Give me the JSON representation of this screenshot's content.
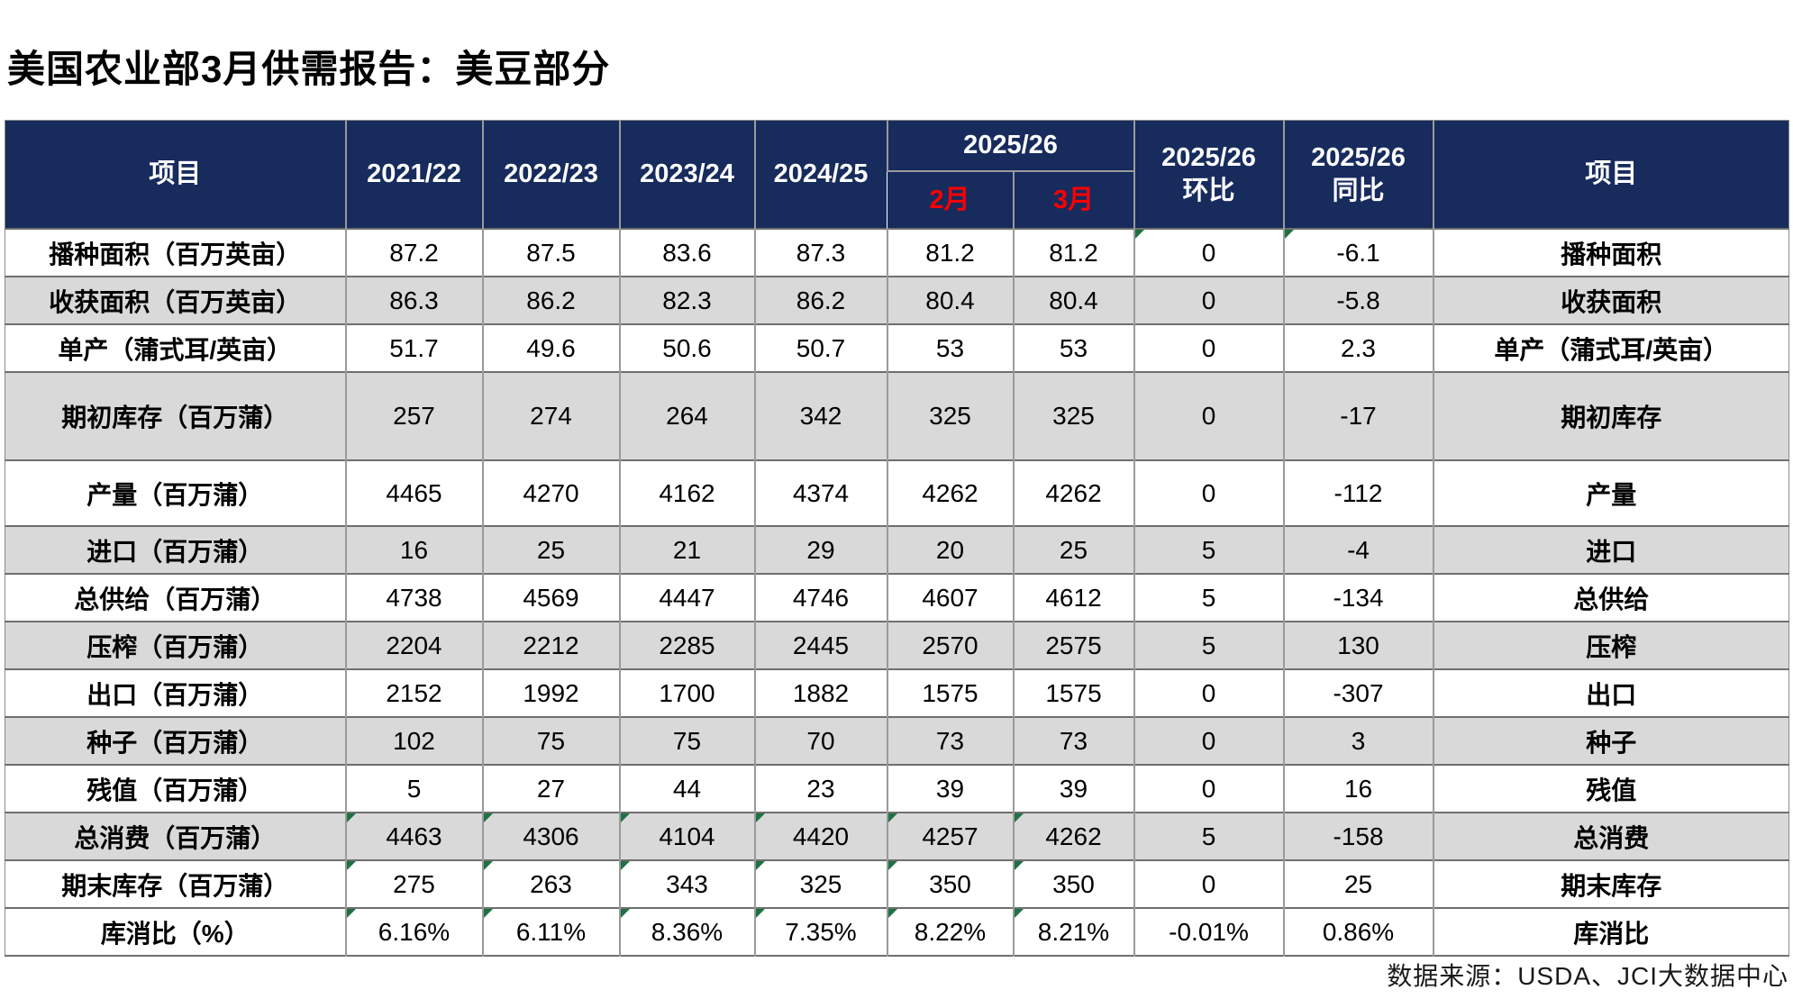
{
  "title": "美国农业部3月供需报告：美豆部分",
  "source": "数据来源：USDA、JCI大数据中心",
  "colors": {
    "header_bg": "#172B5D",
    "month_red": "#FF0000",
    "row_alt": "#D9D9D9",
    "mark_green": "#1E7145",
    "border_dark": "#6F6F6F",
    "border_light": "#9A9A9A"
  },
  "table": {
    "header": {
      "item_left": "项目",
      "years": [
        "2021/22",
        "2022/23",
        "2023/24",
        "2024/25"
      ],
      "group_label": "2025/26",
      "sub_months": [
        "2月",
        "3月"
      ],
      "mom_line1": "2025/26",
      "mom_line2": "环比",
      "yoy_line1": "2025/26",
      "yoy_line2": "同比",
      "item_right": "项目"
    },
    "rows": [
      {
        "label": "播种面积（百万英亩）",
        "values": [
          "87.2",
          "87.5",
          "83.6",
          "87.3",
          "81.2",
          "81.2",
          "0",
          "-6.1"
        ],
        "label_right": "播种面积",
        "marks": [
          6,
          7
        ]
      },
      {
        "label": "收获面积（百万英亩）",
        "values": [
          "86.3",
          "86.2",
          "82.3",
          "86.2",
          "80.4",
          "80.4",
          "0",
          "-5.8"
        ],
        "label_right": "收获面积",
        "marks": []
      },
      {
        "label": "单产（蒲式耳/英亩）",
        "values": [
          "51.7",
          "49.6",
          "50.6",
          "50.7",
          "53",
          "53",
          "0",
          "2.3"
        ],
        "label_right": "单产（蒲式耳/英亩）",
        "marks": []
      },
      {
        "label": "期初库存（百万蒲）",
        "values": [
          "257",
          "274",
          "264",
          "342",
          "325",
          "325",
          "0",
          "-17"
        ],
        "label_right": "期初库存",
        "marks": []
      },
      {
        "label": "产量（百万蒲）",
        "values": [
          "4465",
          "4270",
          "4162",
          "4374",
          "4262",
          "4262",
          "0",
          "-112"
        ],
        "label_right": "产量",
        "marks": []
      },
      {
        "label": "进口（百万蒲）",
        "values": [
          "16",
          "25",
          "21",
          "29",
          "20",
          "25",
          "5",
          "-4"
        ],
        "label_right": "进口",
        "marks": []
      },
      {
        "label": "总供给（百万蒲）",
        "values": [
          "4738",
          "4569",
          "4447",
          "4746",
          "4607",
          "4612",
          "5",
          "-134"
        ],
        "label_right": "总供给",
        "marks": []
      },
      {
        "label": "压榨（百万蒲）",
        "values": [
          "2204",
          "2212",
          "2285",
          "2445",
          "2570",
          "2575",
          "5",
          "130"
        ],
        "label_right": "压榨",
        "marks": []
      },
      {
        "label": "出口（百万蒲）",
        "values": [
          "2152",
          "1992",
          "1700",
          "1882",
          "1575",
          "1575",
          "0",
          "-307"
        ],
        "label_right": "出口",
        "marks": []
      },
      {
        "label": "种子（百万蒲）",
        "values": [
          "102",
          "75",
          "75",
          "70",
          "73",
          "73",
          "0",
          "3"
        ],
        "label_right": "种子",
        "marks": []
      },
      {
        "label": "残值（百万蒲）",
        "values": [
          "5",
          "27",
          "44",
          "23",
          "39",
          "39",
          "0",
          "16"
        ],
        "label_right": "残值",
        "marks": []
      },
      {
        "label": "总消费（百万蒲）",
        "values": [
          "4463",
          "4306",
          "4104",
          "4420",
          "4257",
          "4262",
          "5",
          "-158"
        ],
        "label_right": "总消费",
        "marks": [
          0,
          1,
          2,
          3,
          4,
          5
        ]
      },
      {
        "label": "期末库存（百万蒲）",
        "values": [
          "275",
          "263",
          "343",
          "325",
          "350",
          "350",
          "0",
          "25"
        ],
        "label_right": "期末库存",
        "marks": [
          0,
          1,
          2,
          3,
          4,
          5
        ]
      },
      {
        "label": "库消比（%）",
        "values": [
          "6.16%",
          "6.11%",
          "8.36%",
          "7.35%",
          "8.22%",
          "8.21%",
          "-0.01%",
          "0.86%"
        ],
        "label_right": "库消比",
        "marks": [
          0,
          1,
          2,
          3,
          4,
          5
        ]
      }
    ]
  },
  "chart_data": {
    "type": "table",
    "title": "美国农业部3月供需报告：美豆部分",
    "columns": [
      "项目",
      "2021/22",
      "2022/23",
      "2023/24",
      "2024/25",
      "2025/26 2月",
      "2025/26 3月",
      "2025/26环比",
      "2025/26同比",
      "项目"
    ],
    "rows": [
      [
        "播种面积（百万英亩）",
        "87.2",
        "87.5",
        "83.6",
        "87.3",
        "81.2",
        "81.2",
        "0",
        "-6.1",
        "播种面积"
      ],
      [
        "收获面积（百万英亩）",
        "86.3",
        "86.2",
        "82.3",
        "86.2",
        "80.4",
        "80.4",
        "0",
        "-5.8",
        "收获面积"
      ],
      [
        "单产（蒲式耳/英亩）",
        "51.7",
        "49.6",
        "50.6",
        "50.7",
        "53",
        "53",
        "0",
        "2.3",
        "单产（蒲式耳/英亩）"
      ],
      [
        "期初库存（百万蒲）",
        "257",
        "274",
        "264",
        "342",
        "325",
        "325",
        "0",
        "-17",
        "期初库存"
      ],
      [
        "产量（百万蒲）",
        "4465",
        "4270",
        "4162",
        "4374",
        "4262",
        "4262",
        "0",
        "-112",
        "产量"
      ],
      [
        "进口（百万蒲）",
        "16",
        "25",
        "21",
        "29",
        "20",
        "25",
        "5",
        "-4",
        "进口"
      ],
      [
        "总供给（百万蒲）",
        "4738",
        "4569",
        "4447",
        "4746",
        "4607",
        "4612",
        "5",
        "-134",
        "总供给"
      ],
      [
        "压榨（百万蒲）",
        "2204",
        "2212",
        "2285",
        "2445",
        "2570",
        "2575",
        "5",
        "130",
        "压榨"
      ],
      [
        "出口（百万蒲）",
        "2152",
        "1992",
        "1700",
        "1882",
        "1575",
        "1575",
        "0",
        "-307",
        "出口"
      ],
      [
        "种子（百万蒲）",
        "102",
        "75",
        "75",
        "70",
        "73",
        "73",
        "0",
        "3",
        "种子"
      ],
      [
        "残值（百万蒲）",
        "5",
        "27",
        "44",
        "23",
        "39",
        "39",
        "0",
        "16",
        "残值"
      ],
      [
        "总消费（百万蒲）",
        "4463",
        "4306",
        "4104",
        "4420",
        "4257",
        "4262",
        "5",
        "-158",
        "总消费"
      ],
      [
        "期末库存（百万蒲）",
        "275",
        "263",
        "343",
        "325",
        "350",
        "350",
        "0",
        "25",
        "期末库存"
      ],
      [
        "库消比（%）",
        "6.16%",
        "6.11%",
        "8.36%",
        "7.35%",
        "8.22%",
        "8.21%",
        "-0.01%",
        "0.86%",
        "库消比"
      ]
    ]
  }
}
